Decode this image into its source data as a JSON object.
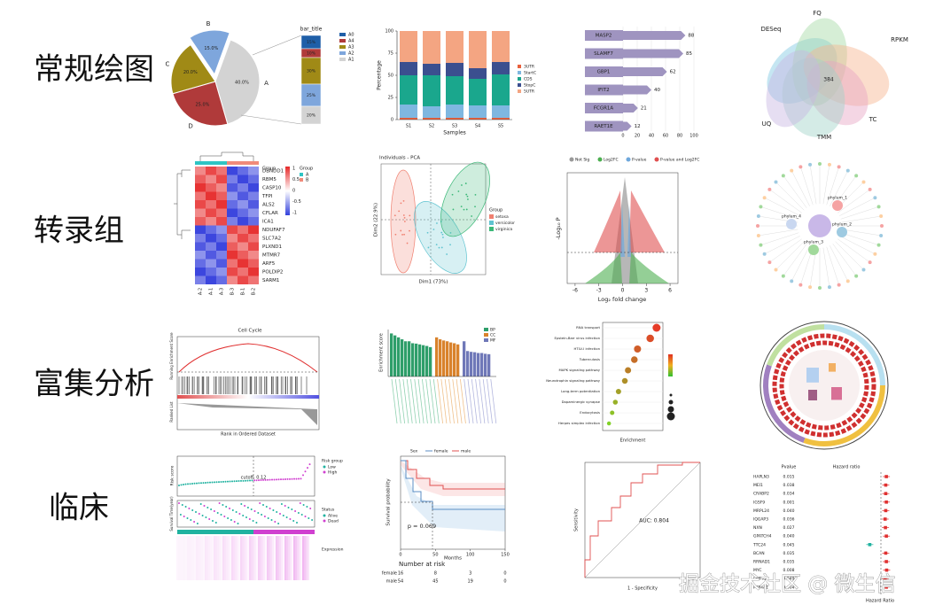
{
  "sections": [
    "常规绘图",
    "转录组",
    "富集分析",
    "临床"
  ],
  "watermark": "掘金技术社区 @ 微生信",
  "pie": {
    "labels": [
      "A",
      "D",
      "C",
      "B"
    ],
    "values": [
      40,
      25,
      20,
      15
    ],
    "value_labels": [
      "40.0%",
      "25.0%",
      "20.0%",
      "15.0%"
    ],
    "colors": [
      "#d3d3d3",
      "#b03a3a",
      "#a08a16",
      "#7ea6dc"
    ],
    "bar_title": "bar_title",
    "bar_legend": [
      "A0",
      "A4",
      "A3",
      "A2",
      "A1"
    ],
    "bar_values": [
      15,
      10,
      30,
      25,
      20
    ],
    "bar_value_labels": [
      "15%",
      "10%",
      "30%",
      "25%",
      "20%"
    ],
    "bar_colors": [
      "#1f5fa8",
      "#b03a3a",
      "#a08a16",
      "#7ea6dc",
      "#d3d3d3"
    ]
  },
  "stack": {
    "categories": [
      "S1",
      "S2",
      "S3",
      "S4",
      "S5"
    ],
    "xlabel": "Samples",
    "ylabel": "Percentage",
    "ylim": [
      0,
      100
    ],
    "yticks": [
      0,
      25,
      50,
      75,
      100
    ],
    "series": [
      {
        "name": "3UTR",
        "color": "#e8603c",
        "values": [
          2,
          2,
          2,
          2,
          2
        ]
      },
      {
        "name": "StartC",
        "color": "#7fb7e0",
        "values": [
          15,
          13,
          15,
          14,
          14
        ]
      },
      {
        "name": "CDS",
        "color": "#1aa78d",
        "values": [
          33,
          35,
          32,
          30,
          35
        ]
      },
      {
        "name": "StopC",
        "color": "#3b4f8f",
        "values": [
          15,
          13,
          15,
          12,
          14
        ]
      },
      {
        "name": "5UTR",
        "color": "#f4a582",
        "values": [
          35,
          37,
          36,
          42,
          35
        ]
      }
    ]
  },
  "lollipop": {
    "categories": [
      "MASP2",
      "SLAMF7",
      "GBP1",
      "IFIT2",
      "FCGR1A",
      "RAET1E"
    ],
    "values": [
      88,
      85,
      62,
      40,
      21,
      12
    ],
    "color": "#9f94c0",
    "xlim": [
      0,
      100
    ],
    "xticks": [
      0,
      20,
      40,
      60,
      80,
      100
    ]
  },
  "venn": {
    "labels": [
      "DESeq",
      "FQ",
      "RPKM",
      "TC",
      "TMM",
      "UQ"
    ],
    "center": 384
  },
  "heatmap": {
    "genes": [
      "DBNDD1",
      "RBM5",
      "CASP10",
      "TFPI",
      "ALS2",
      "CFLAR",
      "ICA1",
      "NDUFAF7",
      "SLC7A2",
      "PLXND1",
      "MTMR7",
      "ARF5",
      "POLDIP2",
      "SARM1"
    ],
    "samples": [
      "A-2",
      "A-1",
      "A-3",
      "B-3",
      "B-1",
      "B-2"
    ],
    "legend_title": "Group",
    "groups": [
      "A",
      "B"
    ],
    "scale": [
      "1",
      "0.5",
      "0",
      "-0.5",
      "-1"
    ]
  },
  "pca": {
    "title": "Individuals - PCA",
    "xlabel": "Dim1 (73%)",
    "ylabel": "Dim2 (22.9%)",
    "legend_title": "Group",
    "groups": [
      "setosa",
      "versicolor",
      "virginica"
    ]
  },
  "volcano": {
    "legend": [
      "Not Sig",
      "Log2FC",
      "P-value",
      "P-value and Log2FC"
    ],
    "xlabel": "Log₂ fold change",
    "ylabel": "-Log₁₀ P",
    "xlim": [
      -7,
      7
    ],
    "xticks": [
      -6,
      -3,
      0,
      3,
      6
    ]
  },
  "network": {
    "labels": [
      "phylum_1",
      "phylum_2",
      "phylum_3",
      "phylum_4"
    ]
  },
  "gsea": {
    "title": "Cell Cycle",
    "xlabel": "Rank in Ordered Dataset",
    "ylabel": "Running Enrichment Score",
    "ylabel2": "Ranked List"
  },
  "enrich": {
    "ylabel": "Enrichment score",
    "legend": [
      "BP",
      "CC",
      "MF"
    ],
    "colors": [
      "#2e9e6a",
      "#d9822b",
      "#6f78b8"
    ],
    "ylim": [
      0,
      12
    ],
    "values": [
      [
        11,
        10.5,
        10,
        9.5,
        9,
        9,
        8.5,
        8.4,
        8.2,
        8,
        7.8,
        7.5
      ],
      [
        10,
        9.5,
        9.2,
        9,
        8.7,
        8.5,
        8.2
      ],
      [
        9,
        6.5,
        6.3,
        6.2,
        6,
        6,
        5.8,
        5.7
      ]
    ]
  },
  "dotplot": {
    "pathways": [
      "RNA transport",
      "Epstein-Barr virus infection",
      "HTLV-I infection",
      "Tuberculosis",
      "MAPK signaling pathway",
      "Neurotrophin signaling pathway",
      "Long-term potentiation",
      "Dopaminergic synapse",
      "Endocytosis",
      "Herpes simplex infection"
    ],
    "values": [
      4.6,
      4.4,
      4.0,
      3.9,
      3.7,
      3.6,
      3.4,
      3.3,
      3.2,
      3.1
    ],
    "xlim": [
      2.9,
      4.8
    ],
    "xlabel": "Enrichment"
  },
  "risk": {
    "ylabel": "Risk score",
    "cutoff": "cutoff: 0.12",
    "legend_title": "Risk group",
    "groups": [
      "Low",
      "High"
    ],
    "status_title": "Status",
    "status": [
      "Alive",
      "Dead"
    ],
    "ylabel2": "Survival Time(year)",
    "expr": "Expression"
  },
  "km": {
    "legend_title": "Sex",
    "groups": [
      "female",
      "male"
    ],
    "ylabel": "Survival probability",
    "xlabel": "Months",
    "pvalue": "p = 0.069",
    "xlim": [
      0,
      150
    ],
    "xticks": [
      0,
      50,
      100,
      150
    ],
    "risk_title": "Number at risk",
    "at_risk": [
      [
        16,
        8,
        3,
        0
      ],
      [
        54,
        45,
        19,
        0
      ]
    ]
  },
  "roc": {
    "auc": "AUC: 0.804",
    "ylabel": "Sensitivity",
    "xlabel": "1 - Specificity"
  },
  "forest": {
    "head_p": "Pvalue",
    "head_hr": "Hazard ratio",
    "xlabel": "Hazard Ratio",
    "ref": 1,
    "genes": [
      "HAPLN3",
      "MEI1",
      "CRABP2",
      "IGSF9",
      "MRPL24",
      "IQGAP3",
      "NXN",
      "GPATCH4",
      "TTC24",
      "BCAN",
      "RRNAD1",
      "MYC",
      "CMPK2",
      "PTP4A1"
    ],
    "pvalues": [
      "0.015",
      "0.038",
      "0.034",
      "0.001",
      "0.040",
      "0.036",
      "0.027",
      "0.040",
      "0.045",
      "0.035",
      "0.035",
      "0.008",
      "0.049",
      "0.004"
    ],
    "hr": [
      1.18,
      1.16,
      1.16,
      1.18,
      1.16,
      1.14,
      1.15,
      1.18,
      0.63,
      1.16,
      1.18,
      1.19,
      1.14,
      1.18
    ]
  }
}
